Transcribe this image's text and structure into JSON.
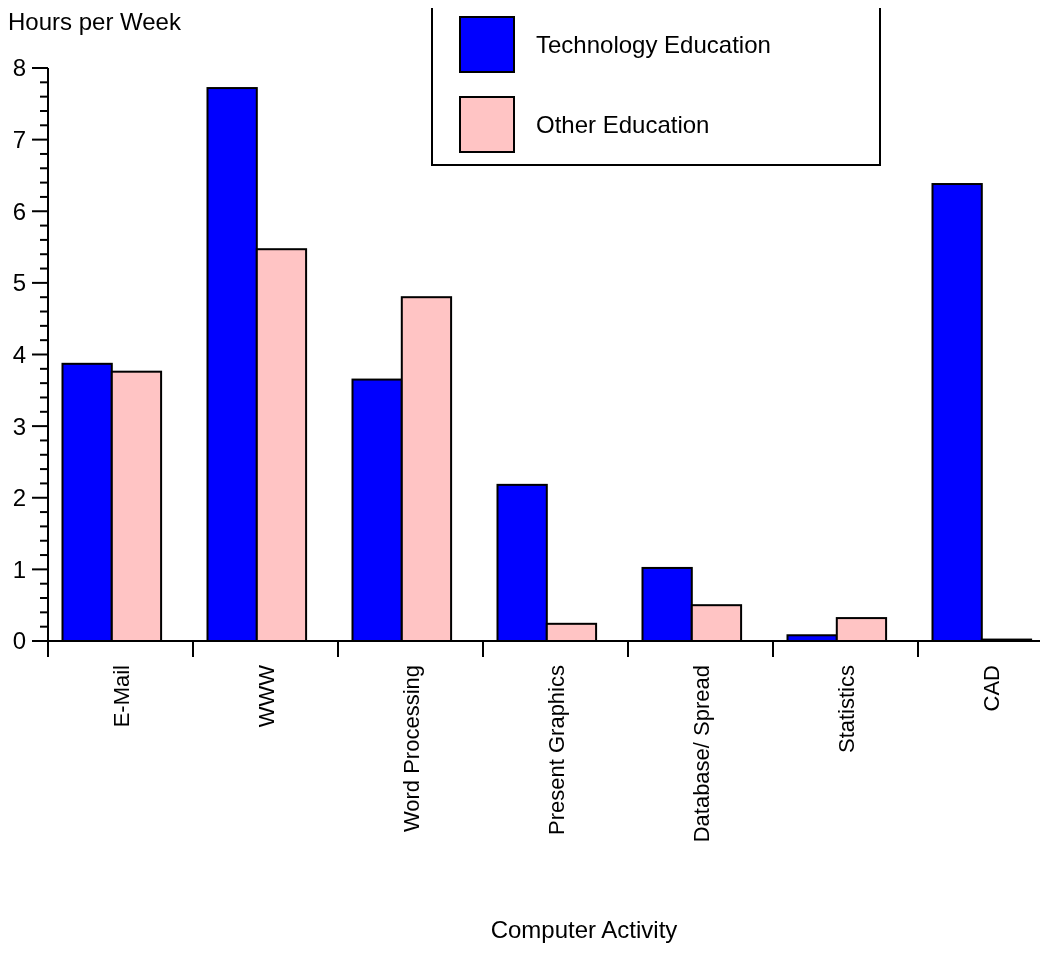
{
  "chart_data": {
    "type": "bar",
    "ylabel": "Hours per Week",
    "xlabel": "Computer Activity",
    "categories": [
      "E-Mail",
      "WWW",
      "Word Processing",
      "Present Graphics",
      "Database/ Spread",
      "Statistics",
      "CAD"
    ],
    "series": [
      {
        "name": "Technology Education",
        "color": "#0000ff",
        "values": [
          3.87,
          7.72,
          3.65,
          2.18,
          1.02,
          0.08,
          6.38
        ]
      },
      {
        "name": "Other Education",
        "color": "#ffc4c4",
        "values": [
          3.76,
          5.47,
          4.8,
          0.24,
          0.5,
          0.32,
          0.02
        ]
      }
    ],
    "ylim": [
      0,
      8
    ],
    "yticks": [
      0,
      1,
      2,
      3,
      4,
      5,
      6,
      7,
      8
    ],
    "grid": false,
    "legend": "top right"
  }
}
